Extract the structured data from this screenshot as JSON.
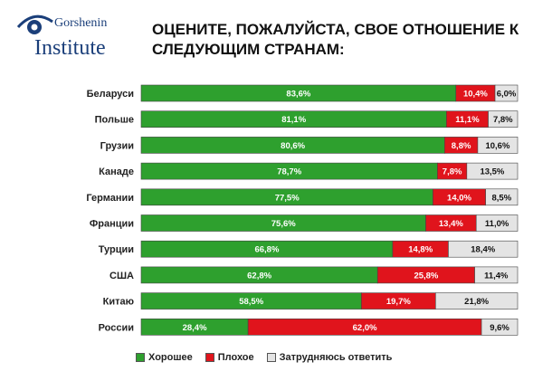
{
  "logo": {
    "name_line1": "Gorshenin",
    "name_line2": "Institute"
  },
  "title_lines": [
    "ОЦЕНИТЕ, ПОЖАЛУЙСТА, СВОЕ ОТНОШЕНИЕ К",
    "СЛЕДУЮЩИМ СТРАНАМ:"
  ],
  "colors": {
    "good": "#2ea02e",
    "bad": "#e0141c",
    "unsure": "#e4e4e4",
    "brand": "#1b3f7a"
  },
  "legend": {
    "good": "Хорошее",
    "bad": "Плохое",
    "unsure": "Затрудняюсь ответить"
  },
  "chart_data": {
    "type": "bar",
    "orientation": "horizontal",
    "stacked": true,
    "categories": [
      "Беларуси",
      "Польше",
      "Грузии",
      "Канаде",
      "Германии",
      "Франции",
      "Турции",
      "США",
      "Китаю",
      "России"
    ],
    "series": [
      {
        "name": "Хорошее",
        "values": [
          83.6,
          81.1,
          80.6,
          78.7,
          77.5,
          75.6,
          66.8,
          62.8,
          58.5,
          28.4
        ],
        "labels": [
          "83,6%",
          "81,1%",
          "80,6%",
          "78,7%",
          "77,5%",
          "75,6%",
          "66,8%",
          "62,8%",
          "58,5%",
          "28,4%"
        ]
      },
      {
        "name": "Плохое",
        "values": [
          10.4,
          11.1,
          8.8,
          7.8,
          14.0,
          13.4,
          14.8,
          25.8,
          19.7,
          62.0
        ],
        "labels": [
          "10,4%",
          "11,1%",
          "8,8%",
          "7,8%",
          "14,0%",
          "13,4%",
          "14,8%",
          "25,8%",
          "19,7%",
          "62,0%"
        ]
      },
      {
        "name": "Затрудняюсь ответить",
        "values": [
          6.0,
          7.8,
          10.6,
          13.5,
          8.5,
          11.0,
          18.4,
          11.4,
          21.8,
          9.6
        ],
        "labels": [
          "6,0%",
          "7,8%",
          "10,6%",
          "13,5%",
          "8,5%",
          "11,0%",
          "18,4%",
          "11,4%",
          "21,8%",
          "9,6%"
        ]
      }
    ],
    "xlim": [
      0,
      100
    ],
    "legend_position": "bottom",
    "grid": false
  }
}
